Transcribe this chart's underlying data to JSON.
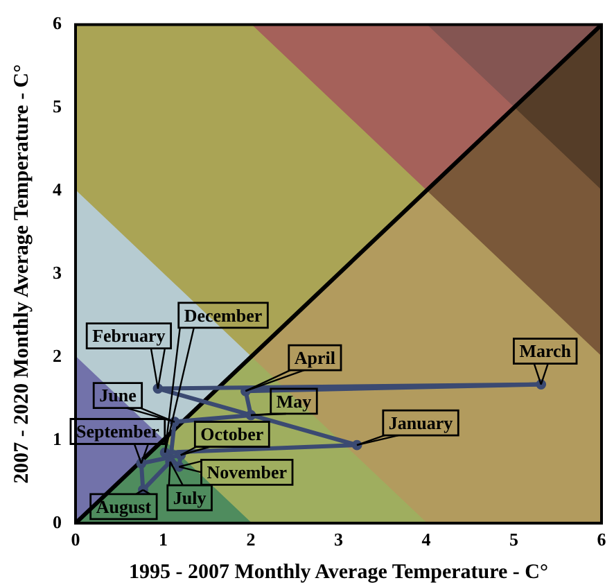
{
  "chart_data": {
    "type": "line",
    "xlabel": "1995 - 2007 Monthly Average Temperature - C°",
    "ylabel": "2007 - 2020 Monthly Average Temperature - C°",
    "xlim": [
      0,
      6
    ],
    "ylim": [
      0,
      6
    ],
    "xticks": [
      0,
      1,
      2,
      3,
      4,
      5,
      6
    ],
    "yticks": [
      0,
      1,
      2,
      3,
      4,
      5,
      6
    ],
    "series": [
      {
        "type": "area",
        "color": "#4f8c5e",
        "x": [
          0,
          1,
          2
        ],
        "values": [
          0,
          1,
          0
        ]
      },
      {
        "type": "area",
        "color": "#7272aa",
        "x": [
          0,
          1
        ],
        "values": [
          2,
          1
        ]
      },
      {
        "type": "area",
        "color": "#9fae5f",
        "x": [
          1,
          2,
          4
        ],
        "values": [
          1,
          2,
          0
        ]
      },
      {
        "type": "area",
        "color": "#b6cbd1",
        "x": [
          0,
          1,
          2
        ],
        "values": [
          4,
          3,
          2
        ]
      },
      {
        "type": "area",
        "color": "#b29b5e",
        "x": [
          2,
          4,
          5,
          6
        ],
        "values": [
          2,
          4,
          3,
          2
        ]
      },
      {
        "type": "area",
        "color": "#aaa455",
        "x": [
          0,
          1,
          2,
          4
        ],
        "values": [
          6,
          6,
          6,
          4
        ]
      },
      {
        "type": "area",
        "color": "#7a5839",
        "x": [
          4,
          5,
          6
        ],
        "values": [
          4,
          5,
          4
        ]
      },
      {
        "type": "area",
        "color": "#a5615a",
        "x": [
          2,
          4,
          5
        ],
        "values": [
          6,
          6,
          5
        ]
      },
      {
        "type": "area",
        "color": "#553d28",
        "x": [
          5,
          6
        ],
        "values": [
          5,
          6
        ]
      },
      {
        "type": "area",
        "color": "#845552",
        "x": [
          4,
          5,
          6
        ],
        "values": [
          6,
          6,
          6
        ]
      },
      {
        "color": "#000000",
        "x": [
          0,
          6
        ],
        "values": [
          0,
          6
        ]
      },
      {
        "color": "#3b4a72",
        "x": [
          0.94,
          3.21
        ],
        "values": [
          1.62,
          0.94
        ]
      },
      {
        "color": "#3b4a72",
        "x": [
          0.94,
          5.31
        ],
        "values": [
          1.62,
          1.67
        ]
      },
      {
        "color": "#3b4a72",
        "x": [
          1.94,
          5.31
        ],
        "values": [
          1.59,
          1.67
        ]
      },
      {
        "color": "#3b4a72",
        "x": [
          1.94,
          2.0
        ],
        "values": [
          1.59,
          1.3
        ]
      },
      {
        "color": "#3b4a72",
        "x": [
          0.75,
          0.77,
          1.08,
          1.13,
          2.0
        ],
        "values": [
          0.72,
          0.4,
          0.74,
          1.22,
          1.3
        ]
      },
      {
        "color": "#3b4a72",
        "x": [
          0.75,
          1.2
        ],
        "values": [
          0.72,
          0.82
        ]
      },
      {
        "color": "#3b4a72",
        "x": [
          1.02,
          1.18,
          1.2
        ],
        "values": [
          0.85,
          0.68,
          0.82
        ]
      },
      {
        "color": "#3b4a72",
        "x": [
          1.02,
          3.21
        ],
        "values": [
          0.85,
          0.94
        ]
      },
      {
        "type": "scatter",
        "color": "#3b4a72",
        "marker": "circle",
        "x": [
          3.21,
          0.94,
          5.31,
          1.94,
          2.0,
          1.13,
          1.08,
          0.77,
          0.75,
          1.2,
          1.18,
          1.02
        ],
        "values": [
          0.94,
          1.62,
          1.67,
          1.59,
          1.3,
          1.22,
          0.74,
          0.4,
          0.72,
          0.82,
          0.68,
          0.85
        ]
      }
    ],
    "annotations": [
      {
        "text": "January",
        "x": 3.21,
        "y": 0.94
      },
      {
        "text": "February",
        "x": 0.94,
        "y": 1.62
      },
      {
        "text": "March",
        "x": 5.31,
        "y": 1.67
      },
      {
        "text": "April",
        "x": 1.94,
        "y": 1.59
      },
      {
        "text": "May",
        "x": 2.0,
        "y": 1.3
      },
      {
        "text": "June",
        "x": 1.13,
        "y": 1.22
      },
      {
        "text": "July",
        "x": 1.08,
        "y": 0.74
      },
      {
        "text": "August",
        "x": 0.77,
        "y": 0.4
      },
      {
        "text": "September",
        "x": 0.75,
        "y": 0.72
      },
      {
        "text": "October",
        "x": 1.2,
        "y": 0.82
      },
      {
        "text": "November",
        "x": 1.18,
        "y": 0.68
      },
      {
        "text": "December",
        "x": 1.02,
        "y": 0.85
      }
    ]
  }
}
